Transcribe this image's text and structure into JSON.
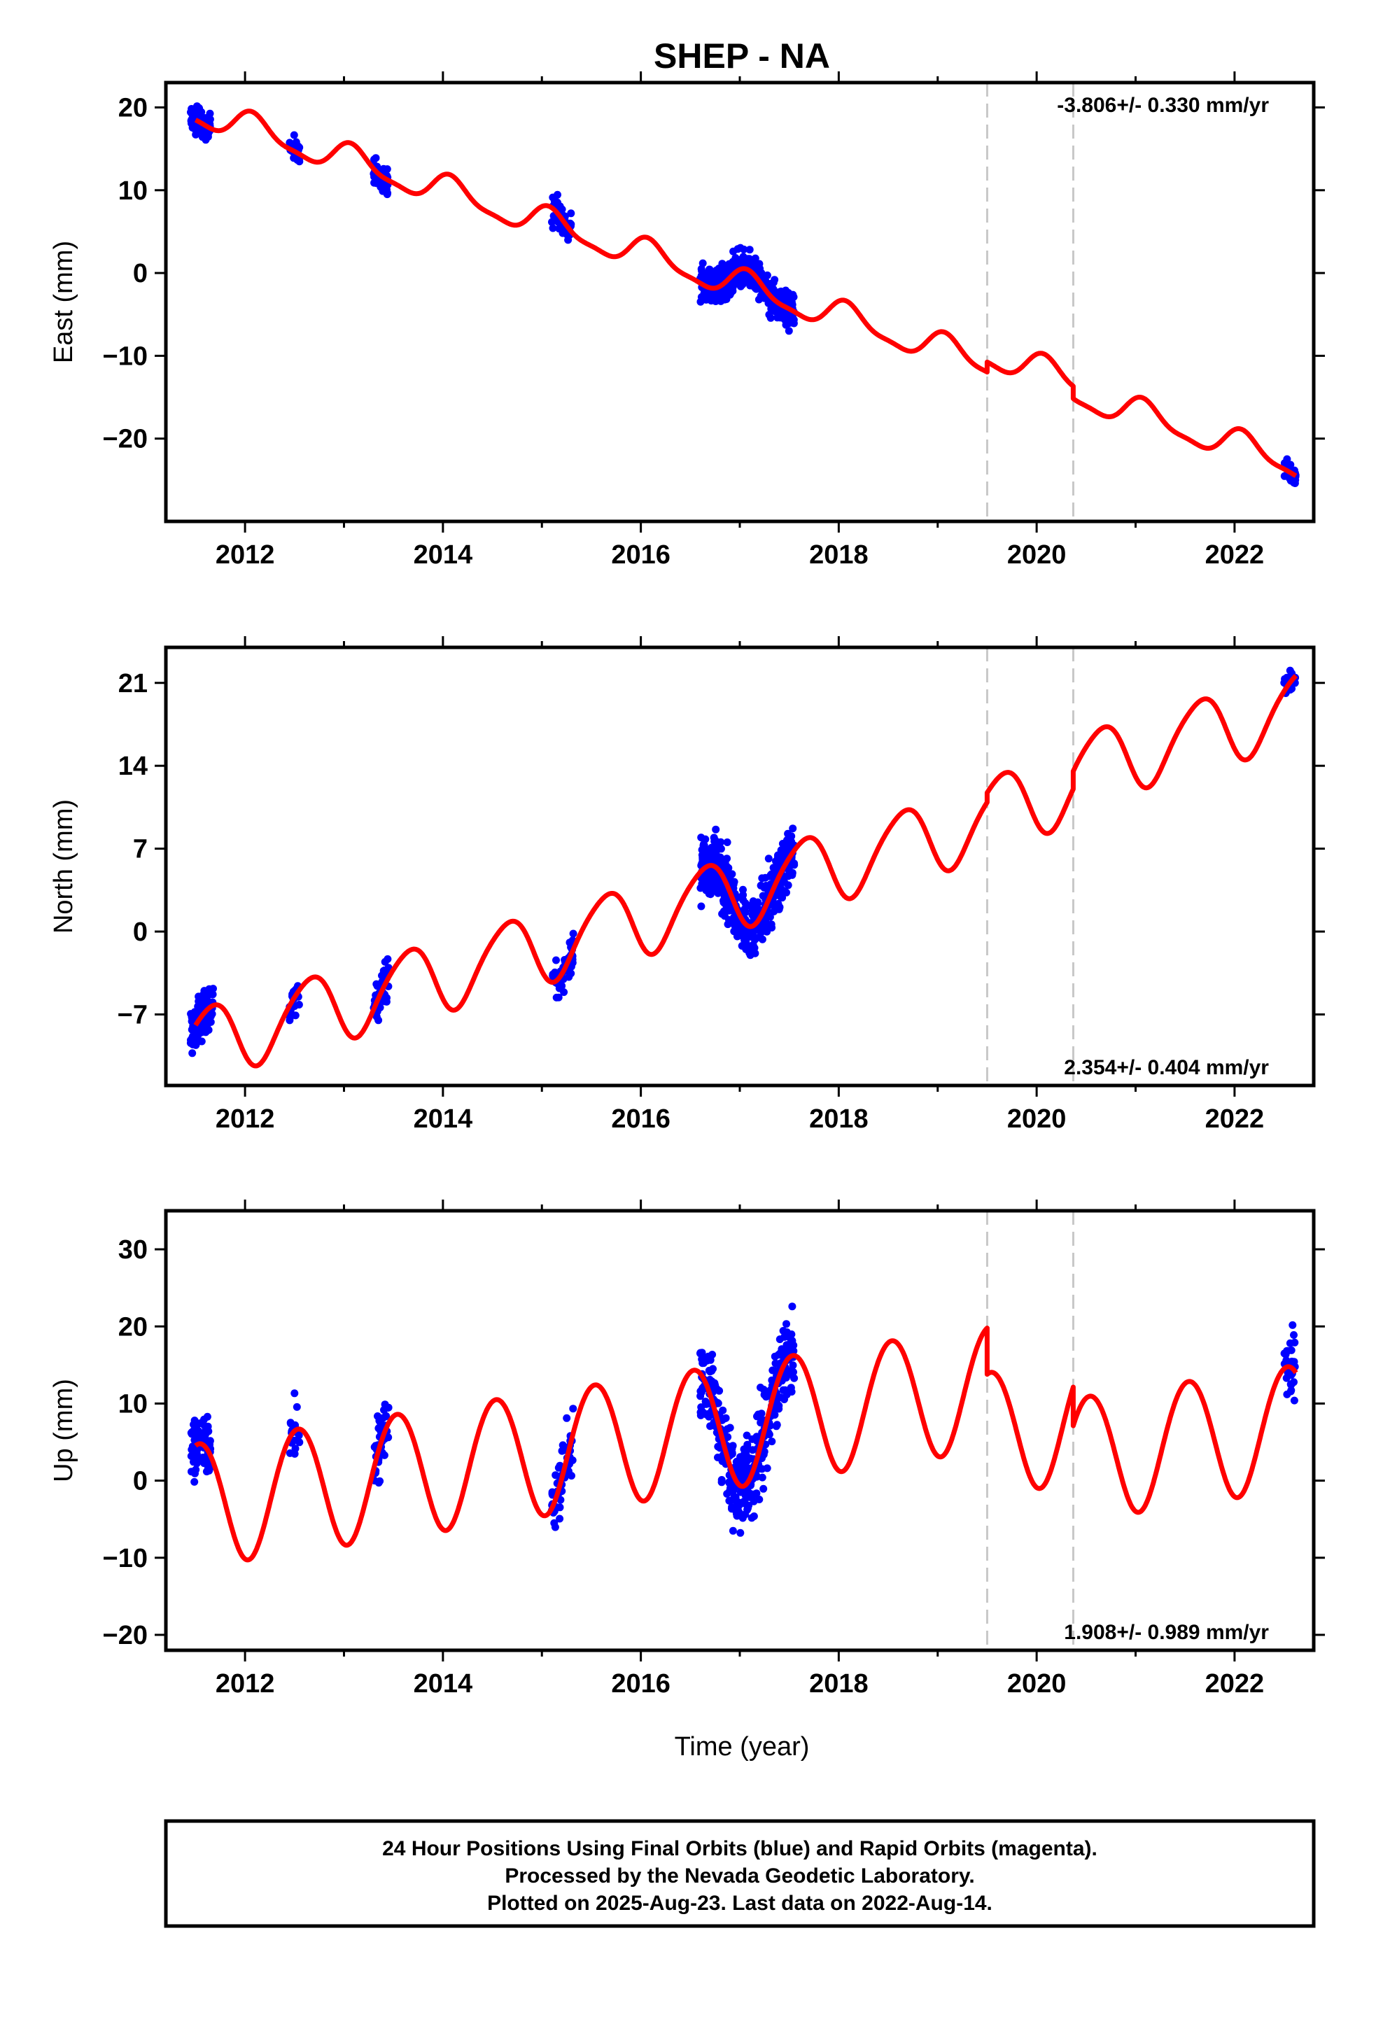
{
  "chart_data": {
    "type": "scatter",
    "title": "SHEP - NA",
    "xlabel": "Time (year)",
    "xlim": [
      2011.2,
      2022.8
    ],
    "x_ticks": [
      2012,
      2014,
      2016,
      2018,
      2020,
      2022
    ],
    "x_tick_labels": [
      "2012",
      "2014",
      "2016",
      "2018",
      "2020",
      "2022"
    ],
    "grid": false,
    "offsets": [
      2019.5,
      2020.37
    ],
    "marker_color": "#0000ff",
    "model_color": "#ff0000",
    "offset_line_color": "#c8c8c8",
    "panels": [
      {
        "name": "east",
        "ylabel": "East (mm)",
        "ylim": [
          -30,
          23
        ],
        "y_ticks": [
          20,
          10,
          0,
          -10,
          -20
        ],
        "y_tick_labels": [
          "20",
          "10",
          "0",
          "−10",
          "−20"
        ],
        "rate_label": "-3.806+/- 0.330 mm/yr",
        "rate_position": "top-right",
        "model": {
          "t0": 2011.5,
          "v0": 19.5,
          "rate": -3.806,
          "amp": 1.7,
          "phase": 1.0,
          "semi_amp": 0.5,
          "jumps": [
            {
              "t": 2019.5,
              "dv": 1.2
            },
            {
              "t": 2020.37,
              "dv": -1.5
            }
          ]
        },
        "points": {
          "segments": [
            {
              "t": [
                2011.45,
                2011.65
              ],
              "n": 110,
              "noise": 1.1
            },
            {
              "t": [
                2012.45,
                2012.55
              ],
              "n": 25,
              "noise": 1.2
            },
            {
              "t": [
                2013.3,
                2013.45
              ],
              "n": 45,
              "noise": 1.1
            },
            {
              "t": [
                2015.1,
                2015.3
              ],
              "n": 55,
              "noise": 1.5
            },
            {
              "t": [
                2016.6,
                2017.55
              ],
              "n": 480,
              "noise": 1.5
            },
            {
              "t": [
                2022.5,
                2022.62
              ],
              "n": 30,
              "noise": 0.9
            }
          ]
        }
      },
      {
        "name": "north",
        "ylabel": "North (mm)",
        "ylim": [
          -13,
          24
        ],
        "y_ticks": [
          21,
          14,
          7,
          0,
          -7
        ],
        "y_tick_labels": [
          "21",
          "14",
          "7",
          "0",
          "−7"
        ],
        "rate_label": "2.354+/- 0.404 mm/yr",
        "rate_position": "bottom-right",
        "model": {
          "t0": 2011.5,
          "v0": -9.5,
          "rate": 2.354,
          "amp": 3.0,
          "phase": 3.8,
          "semi_amp": 0.4,
          "jumps": [
            {
              "t": 2019.5,
              "dv": 0.8
            },
            {
              "t": 2020.37,
              "dv": 1.5
            }
          ]
        },
        "points": {
          "segments": [
            {
              "t": [
                2011.45,
                2011.68
              ],
              "n": 110,
              "noise": 1.3
            },
            {
              "t": [
                2012.45,
                2012.55
              ],
              "n": 22,
              "noise": 1.2
            },
            {
              "t": [
                2013.3,
                2013.45
              ],
              "n": 45,
              "noise": 1.6
            },
            {
              "t": [
                2015.1,
                2015.32
              ],
              "n": 55,
              "noise": 1.3
            },
            {
              "t": [
                2016.6,
                2017.55
              ],
              "n": 480,
              "noise": 1.8
            },
            {
              "t": [
                2022.5,
                2022.62
              ],
              "n": 30,
              "noise": 1.0
            }
          ]
        }
      },
      {
        "name": "up",
        "ylabel": "Up (mm)",
        "ylim": [
          -22,
          35
        ],
        "y_ticks": [
          30,
          20,
          10,
          0,
          -10,
          -20
        ],
        "y_tick_labels": [
          "30",
          "20",
          "10",
          "0",
          "−10",
          "−20"
        ],
        "rate_label": "1.908+/- 0.989 mm/yr",
        "rate_position": "bottom-right",
        "model": {
          "t0": 2011.5,
          "v0": -3.0,
          "rate": 1.908,
          "amp": 8.0,
          "phase": 4.5,
          "semi_amp": 0.3,
          "jumps": [
            {
              "t": 2019.5,
              "dv": -6.0
            },
            {
              "t": 2020.37,
              "dv": -5.0
            }
          ]
        },
        "points": {
          "segments": [
            {
              "t": [
                2011.45,
                2011.65
              ],
              "n": 80,
              "noise": 2.5
            },
            {
              "t": [
                2012.45,
                2012.55
              ],
              "n": 20,
              "noise": 2.5
            },
            {
              "t": [
                2013.3,
                2013.45
              ],
              "n": 50,
              "noise": 3.2
            },
            {
              "t": [
                2015.1,
                2015.32
              ],
              "n": 50,
              "noise": 2.7
            },
            {
              "t": [
                2016.6,
                2017.55
              ],
              "n": 400,
              "noise": 4.0
            },
            {
              "t": [
                2022.5,
                2022.62
              ],
              "n": 30,
              "noise": 3.2
            }
          ]
        }
      }
    ]
  },
  "footer": {
    "line1": "24 Hour Positions Using Final Orbits (blue) and Rapid Orbits (magenta).",
    "line2": "Processed by the Nevada Geodetic Laboratory.",
    "line3": "Plotted on 2025-Aug-23. Last data on 2022-Aug-14."
  }
}
